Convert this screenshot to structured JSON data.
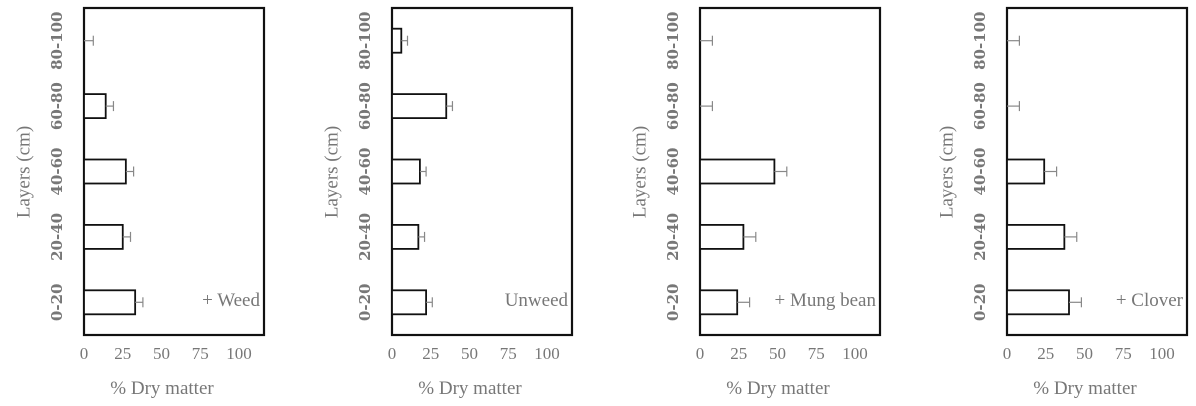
{
  "chart_data": [
    {
      "type": "bar",
      "orientation": "horizontal",
      "panel_label": "+ Weed",
      "categories": [
        "0-20",
        "20-40",
        "40-60",
        "60-80",
        "80-100"
      ],
      "values": [
        33,
        25,
        27,
        14,
        0
      ],
      "errors": [
        5,
        5,
        5,
        5,
        6
      ],
      "xlabel": "% Dry matter",
      "ylabel": "Layers (cm)",
      "xlim": [
        0,
        120
      ],
      "xticks": [
        "0",
        "25",
        "50",
        "75",
        "100"
      ],
      "grid": false
    },
    {
      "type": "bar",
      "orientation": "horizontal",
      "panel_label": "Unweed",
      "categories": [
        "0-20",
        "20-40",
        "40-60",
        "60-80",
        "80-100"
      ],
      "values": [
        22,
        17,
        18,
        35,
        6
      ],
      "errors": [
        4,
        4,
        4,
        4,
        4
      ],
      "xlabel": "% Dry matter",
      "ylabel": "Layers (cm)",
      "xlim": [
        0,
        120
      ],
      "xticks": [
        "0",
        "25",
        "50",
        "75",
        "100"
      ],
      "grid": false
    },
    {
      "type": "bar",
      "orientation": "horizontal",
      "panel_label": "+ Mung bean",
      "categories": [
        "0-20",
        "20-40",
        "40-60",
        "60-80",
        "80-100"
      ],
      "values": [
        24,
        28,
        48,
        0,
        0
      ],
      "errors": [
        8,
        8,
        8,
        8,
        8
      ],
      "xlabel": "% Dry matter",
      "ylabel": "Layers (cm)",
      "xlim": [
        0,
        120
      ],
      "xticks": [
        "0",
        "25",
        "50",
        "75",
        "100"
      ],
      "grid": false
    },
    {
      "type": "bar",
      "orientation": "horizontal",
      "panel_label": "+ Clover",
      "categories": [
        "0-20",
        "20-40",
        "40-60",
        "60-80",
        "80-100"
      ],
      "values": [
        40,
        37,
        24,
        0,
        0
      ],
      "errors": [
        8,
        8,
        8,
        8,
        8
      ],
      "xlabel": "% Dry matter",
      "ylabel": "Layers (cm)",
      "xlim": [
        0,
        120
      ],
      "xticks": [
        "0",
        "25",
        "50",
        "75",
        "100"
      ],
      "grid": false
    }
  ]
}
